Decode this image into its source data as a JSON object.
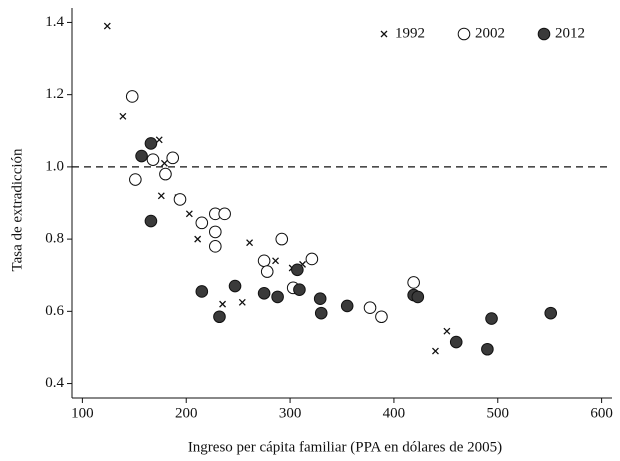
{
  "chart_data": {
    "type": "scatter",
    "xlabel": "Ingreso per cápita familiar (PPA en dólares de 2005)",
    "ylabel": "Tasa de extradicción",
    "xlim": [
      90,
      610
    ],
    "ylim": [
      0.36,
      1.44
    ],
    "xticks": [
      100,
      200,
      300,
      400,
      500,
      600
    ],
    "yticks": [
      0.4,
      0.6,
      0.8,
      {
        "value": 1,
        "label": "1.0"
      },
      1.2,
      1.4
    ],
    "hline": 1,
    "legend": "upper right",
    "series": [
      {
        "name": "1992",
        "color": "#111111",
        "marker": "x",
        "x": [
          124,
          139,
          174,
          179,
          176,
          192,
          203,
          211,
          261,
          235,
          254,
          286,
          302,
          312,
          451,
          440
        ],
        "values": [
          1.39,
          1.14,
          1.075,
          1.01,
          0.92,
          0.915,
          0.87,
          0.8,
          0.79,
          0.62,
          0.625,
          0.74,
          0.72,
          0.73,
          0.545,
          0.49
        ]
      },
      {
        "name": "2002",
        "color": "#111111",
        "marker": "open",
        "x": [
          148,
          151,
          168,
          180,
          187,
          194,
          215,
          228,
          237,
          228,
          228,
          275,
          278,
          292,
          321,
          303,
          419,
          377,
          388
        ],
        "values": [
          1.195,
          0.965,
          1.02,
          0.98,
          1.025,
          0.91,
          0.845,
          0.87,
          0.87,
          0.82,
          0.78,
          0.74,
          0.71,
          0.8,
          0.745,
          0.665,
          0.68,
          0.61,
          0.585
        ]
      },
      {
        "name": "2012",
        "color": "#111111",
        "marker": "filled",
        "x": [
          166,
          157,
          166,
          215,
          247,
          232,
          275,
          288,
          307,
          309,
          329,
          330,
          355,
          419,
          423,
          460,
          494,
          490,
          551
        ],
        "values": [
          1.065,
          1.03,
          0.85,
          0.655,
          0.67,
          0.585,
          0.65,
          0.64,
          0.715,
          0.66,
          0.635,
          0.595,
          0.615,
          0.645,
          0.64,
          0.515,
          0.58,
          0.495,
          0.595
        ]
      }
    ]
  }
}
